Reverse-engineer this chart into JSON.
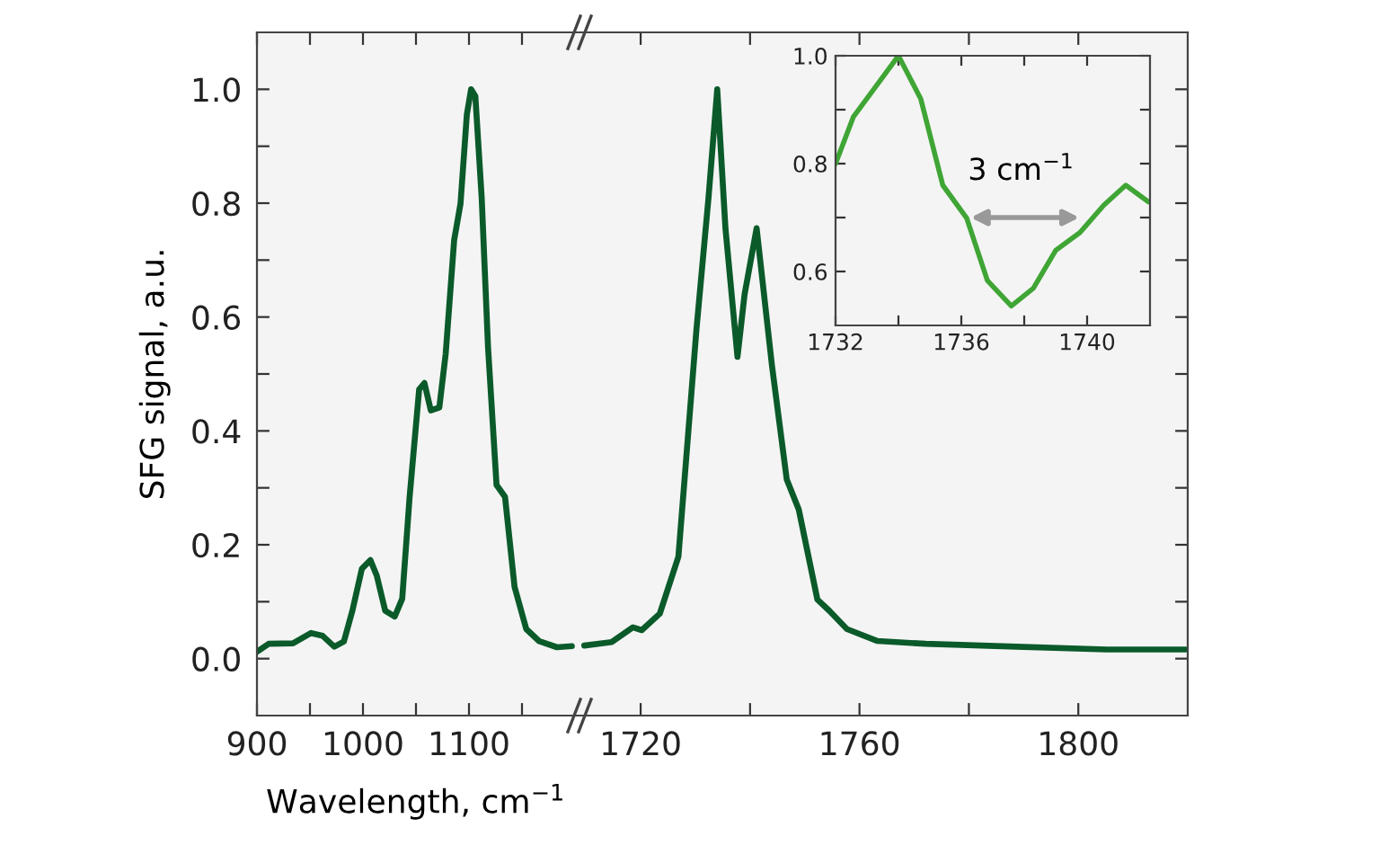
{
  "chart_data": [
    {
      "type": "line",
      "ylabel": "SFG signal, a.u.",
      "xlim": [
        900,
        1200
      ],
      "ylim": [
        -0.1,
        1.1
      ],
      "xticks": [
        900,
        {
          "value": 950,
          "label": null
        },
        1000,
        {
          "value": 1050,
          "label": null
        },
        1100,
        {
          "value": 1150,
          "label": null
        }
      ],
      "yticks": [
        {
          "value": 0.0,
          "label": "0.0"
        },
        {
          "value": 0.1,
          "label": null
        },
        {
          "value": 0.2,
          "label": "0.2"
        },
        {
          "value": 0.3,
          "label": null
        },
        {
          "value": 0.4,
          "label": "0.4"
        },
        {
          "value": 0.5,
          "label": null
        },
        {
          "value": 0.6,
          "label": "0.6"
        },
        {
          "value": 0.7,
          "label": null
        },
        {
          "value": 0.8,
          "label": "0.8"
        },
        {
          "value": 0.9,
          "label": null
        },
        {
          "value": 1.0,
          "label": "1.0"
        }
      ],
      "series": [
        {
          "color": "#0b5a2a",
          "x": [
            900,
            911,
            934,
            951,
            962,
            973,
            982,
            990,
            999,
            1007,
            1013,
            1021,
            1030,
            1037,
            1044,
            1053,
            1058,
            1064,
            1072,
            1078,
            1086,
            1092,
            1098,
            1102,
            1106,
            1112,
            1118,
            1126,
            1134,
            1143,
            1154,
            1166,
            1183,
            1197
          ],
          "values": [
            0.012,
            0.026,
            0.027,
            0.045,
            0.04,
            0.021,
            0.03,
            0.084,
            0.158,
            0.173,
            0.146,
            0.084,
            0.074,
            0.105,
            0.284,
            0.473,
            0.484,
            0.436,
            0.441,
            0.535,
            0.735,
            0.799,
            0.956,
            1.0,
            0.988,
            0.809,
            0.546,
            0.305,
            0.284,
            0.126,
            0.052,
            0.031,
            0.02,
            0.022
          ]
        }
      ]
    },
    {
      "type": "line",
      "xlabel": "Wavelength, cm$^{−1}$",
      "xlim": [
        1708,
        1820
      ],
      "ylim": [
        -0.1,
        1.1
      ],
      "tick_labels": "x",
      "xticks": [
        1720,
        {
          "value": 1740,
          "label": null
        },
        1760,
        {
          "value": 1780,
          "label": null
        },
        1800
      ],
      "yticks": [
        {
          "value": 0.0,
          "label": null
        },
        {
          "value": 0.1,
          "label": null
        },
        {
          "value": 0.2,
          "label": null
        },
        {
          "value": 0.3,
          "label": null
        },
        {
          "value": 0.4,
          "label": null
        },
        {
          "value": 0.5,
          "label": null
        },
        {
          "value": 0.6,
          "label": null
        },
        {
          "value": 0.7,
          "label": null
        },
        {
          "value": 0.8,
          "label": null
        },
        {
          "value": 0.9,
          "label": null
        },
        {
          "value": 1.0,
          "label": null
        }
      ],
      "series": [
        {
          "color": "#0b5a2a",
          "x": [
            1709.7,
            1714.7,
            1718.6,
            1720.2,
            1723.5,
            1726.9,
            1730.2,
            1732.4,
            1734.0,
            1735.5,
            1737.7,
            1739.0,
            1741.2,
            1744.0,
            1746.7,
            1748.9,
            1752.3,
            1754.5,
            1757.7,
            1763.3,
            1772.1,
            1788.7,
            1805.2,
            1819.6
          ],
          "values": [
            0.023,
            0.029,
            0.055,
            0.05,
            0.079,
            0.179,
            0.578,
            0.809,
            1.0,
            0.756,
            0.53,
            0.64,
            0.756,
            0.515,
            0.315,
            0.262,
            0.104,
            0.084,
            0.052,
            0.031,
            0.026,
            0.021,
            0.016,
            0.016
          ]
        }
      ]
    },
    {
      "type": "line",
      "xlim": [
        1732,
        1742
      ],
      "ylim": [
        0.5,
        1.0
      ],
      "xticks": [
        1732,
        {
          "value": 1734,
          "label": null
        },
        1736,
        {
          "value": 1738,
          "label": null
        },
        1740
      ],
      "yticks": [
        {
          "value": 0.6,
          "label": "0.6"
        },
        {
          "value": 0.7,
          "label": null
        },
        {
          "value": 0.8,
          "label": "0.8"
        },
        {
          "value": 0.9,
          "label": null
        },
        {
          "value": 1.0,
          "label": "1.0"
        }
      ],
      "annotations": [
        "3 cm$^{−1}$"
      ],
      "series": [
        {
          "color": "#3fa535",
          "x": [
            1732,
            1732.57,
            1733.33,
            1734.0,
            1734.71,
            1735.41,
            1736.17,
            1736.83,
            1737.59,
            1738.29,
            1739.0,
            1739.77,
            1740.53,
            1741.23,
            1741.95
          ],
          "values": [
            0.8,
            0.887,
            0.947,
            1.0,
            0.92,
            0.76,
            0.699,
            0.583,
            0.536,
            0.569,
            0.639,
            0.672,
            0.723,
            0.76,
            0.729
          ]
        }
      ]
    }
  ]
}
